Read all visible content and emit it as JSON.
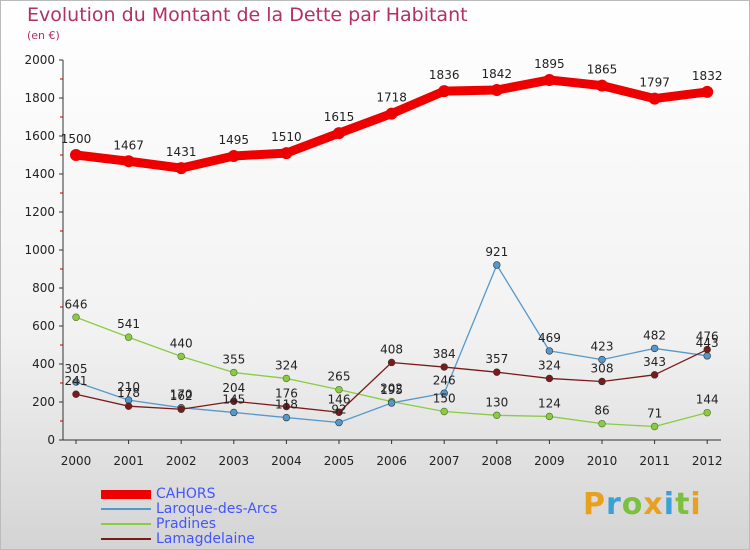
{
  "title": "Evolution du Montant de la Dette par Habitant",
  "subtitle": "(en €)",
  "brand": "Proxiti",
  "chart_data": {
    "type": "line",
    "title": "Evolution du Montant de la Dette par Habitant",
    "subtitle": "(en €)",
    "xlabel": "",
    "ylabel": "",
    "ylim": [
      0,
      2000
    ],
    "yticks": [
      0,
      200,
      400,
      600,
      800,
      1000,
      1200,
      1400,
      1600,
      1800,
      2000
    ],
    "grid": false,
    "legend_position": "bottom-left",
    "x": [
      "2000",
      "2001",
      "2002",
      "2003",
      "2004",
      "2005",
      "2006",
      "2007",
      "2008",
      "2009",
      "2010",
      "2011",
      "2012"
    ],
    "series": [
      {
        "name": "CAHORS",
        "color": "#ee0000",
        "values": [
          1500,
          1467,
          1431,
          1495,
          1510,
          1615,
          1718,
          1836,
          1842,
          1895,
          1865,
          1797,
          1832
        ],
        "labels": [
          "1500",
          "1467",
          "1431",
          "1495",
          "1510",
          "1615",
          "1718",
          "1836",
          "1842",
          "1895",
          "1865",
          "1797",
          "1832"
        ]
      },
      {
        "name": "Laroque-des-Arcs",
        "color": "#5599cc",
        "values": [
          305,
          210,
          170,
          145,
          118,
          92,
          195,
          246,
          921,
          469,
          423,
          482,
          443
        ],
        "labels": [
          "305",
          "210",
          "170",
          "145",
          "118",
          "92",
          "195",
          "246",
          "921",
          "469",
          "423",
          "482",
          "443"
        ]
      },
      {
        "name": "Pradines",
        "color": "#88cc44",
        "values": [
          646,
          541,
          440,
          355,
          324,
          265,
          202,
          150,
          130,
          124,
          86,
          71,
          144
        ],
        "labels": [
          "646",
          "541",
          "440",
          "355",
          "324",
          "265",
          "202",
          "150",
          "130",
          "124",
          "86",
          "71",
          "144"
        ]
      },
      {
        "name": "Lamagdelaine",
        "color": "#7a1a1a",
        "values": [
          241,
          178,
          162,
          204,
          176,
          146,
          408,
          384,
          357,
          324,
          308,
          343,
          476
        ],
        "labels": [
          "241",
          "178",
          "162",
          "204",
          "176",
          "146",
          "408",
          "384",
          "357",
          "324",
          "308",
          "343",
          "476"
        ]
      }
    ]
  }
}
